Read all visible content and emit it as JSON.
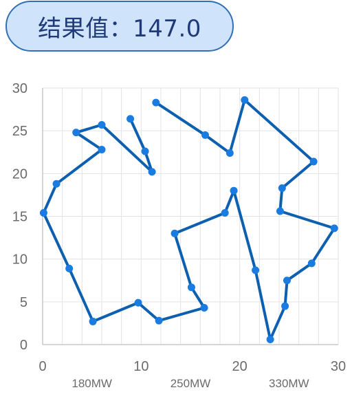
{
  "result": {
    "label": "结果值：",
    "value": "147.0"
  },
  "chart_data": {
    "type": "line",
    "title": "",
    "xlabel": "",
    "ylabel": "",
    "xlim": [
      0,
      30
    ],
    "ylim": [
      0,
      30
    ],
    "x_ticks": [
      0,
      10,
      20,
      30
    ],
    "y_ticks": [
      0,
      5,
      10,
      15,
      20,
      25,
      30
    ],
    "x_tick_labels": [
      "0",
      "10",
      "20",
      "30"
    ],
    "y_tick_labels": [
      "0",
      "5",
      "10",
      "15",
      "20",
      "25",
      "30"
    ],
    "minor_x_step": 2,
    "grid": true,
    "colors": {
      "line": "#0d5fb0",
      "marker": "#1a7be0",
      "grid": "#e3e3e3",
      "axis": "#c8c8c8"
    },
    "annotations": [
      {
        "text": "180MW",
        "x": 5
      },
      {
        "text": "250MW",
        "x": 15
      },
      {
        "text": "330MW",
        "x": 25
      }
    ],
    "series": [
      {
        "points": [
          [
            11.5,
            28.3
          ],
          [
            16.5,
            24.5
          ],
          [
            19.0,
            22.4
          ],
          [
            20.5,
            28.6
          ],
          [
            27.5,
            21.4
          ],
          [
            24.3,
            18.3
          ],
          [
            24.1,
            15.6
          ],
          [
            29.6,
            13.6
          ],
          [
            27.3,
            9.5
          ],
          [
            24.8,
            7.5
          ],
          [
            24.6,
            4.5
          ],
          [
            23.1,
            0.6
          ],
          [
            21.6,
            8.7
          ],
          [
            19.4,
            18.0
          ],
          [
            18.5,
            15.4
          ],
          [
            13.4,
            13.0
          ],
          [
            15.1,
            6.7
          ],
          [
            16.4,
            4.3
          ],
          [
            11.8,
            2.8
          ],
          [
            9.7,
            4.9
          ],
          [
            5.1,
            2.7
          ],
          [
            2.7,
            8.9
          ],
          [
            0.1,
            15.4
          ],
          [
            1.4,
            18.8
          ],
          [
            6.0,
            22.8
          ],
          [
            3.4,
            24.8
          ],
          [
            6.0,
            25.7
          ],
          [
            11.1,
            20.2
          ],
          [
            10.4,
            22.6
          ],
          [
            8.9,
            26.4
          ]
        ]
      }
    ]
  }
}
